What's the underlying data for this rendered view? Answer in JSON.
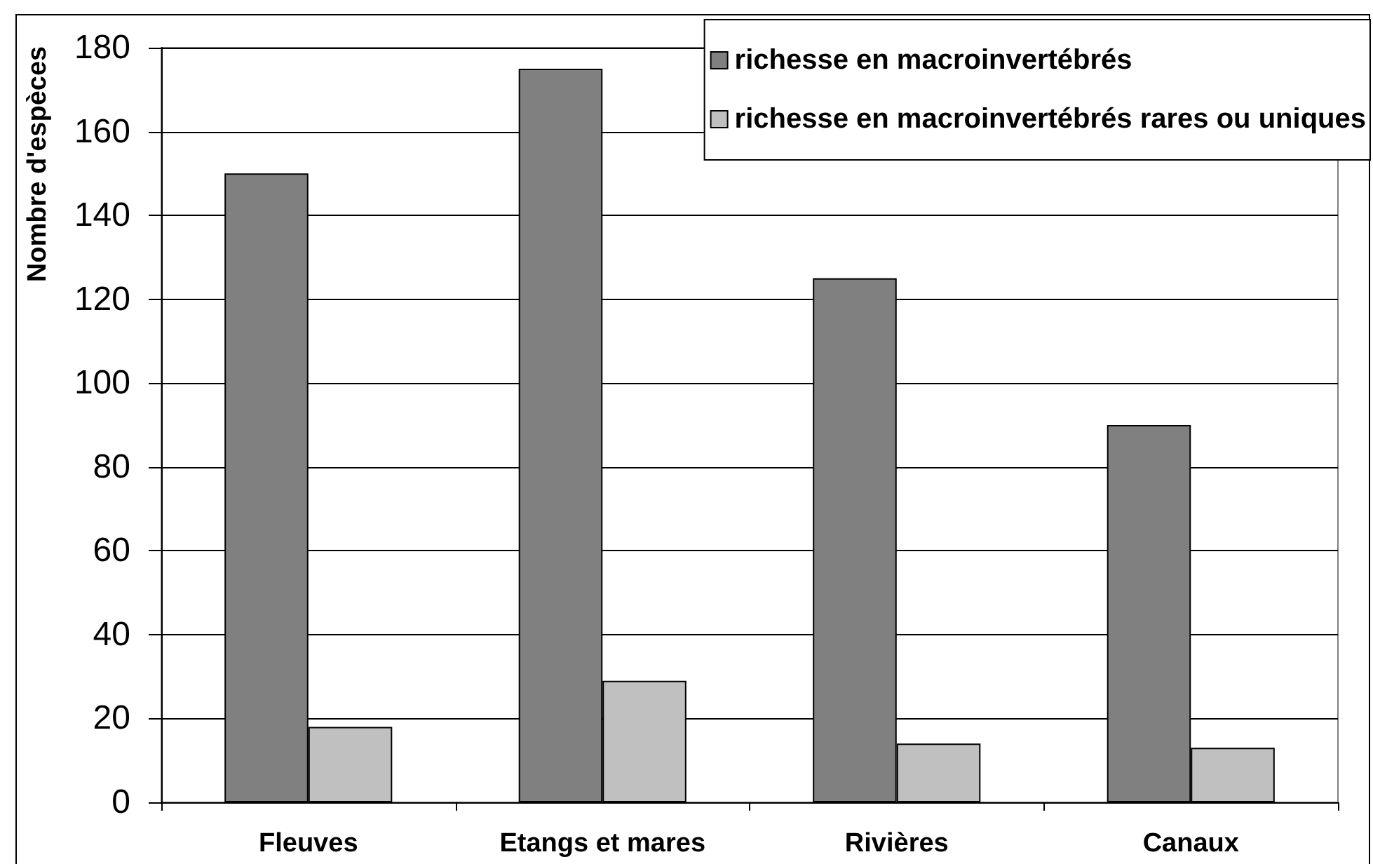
{
  "chart_data": {
    "type": "bar",
    "ylabel": "Nombre d'espèces",
    "categories": [
      "Fleuves",
      "Etangs et mares",
      "Rivières",
      "Canaux"
    ],
    "series": [
      {
        "name": "richesse en macroinvertébrés",
        "color": "#808080",
        "values": [
          150,
          175,
          125,
          90
        ]
      },
      {
        "name": "richesse en macroinvertébrés rares ou uniques",
        "color": "#c0c0c0",
        "values": [
          18,
          29,
          14,
          13
        ]
      }
    ],
    "ylim": [
      0,
      180
    ],
    "yticks": [
      0,
      20,
      40,
      60,
      80,
      100,
      120,
      140,
      160,
      180
    ],
    "grid": "y",
    "legend": "top right"
  }
}
